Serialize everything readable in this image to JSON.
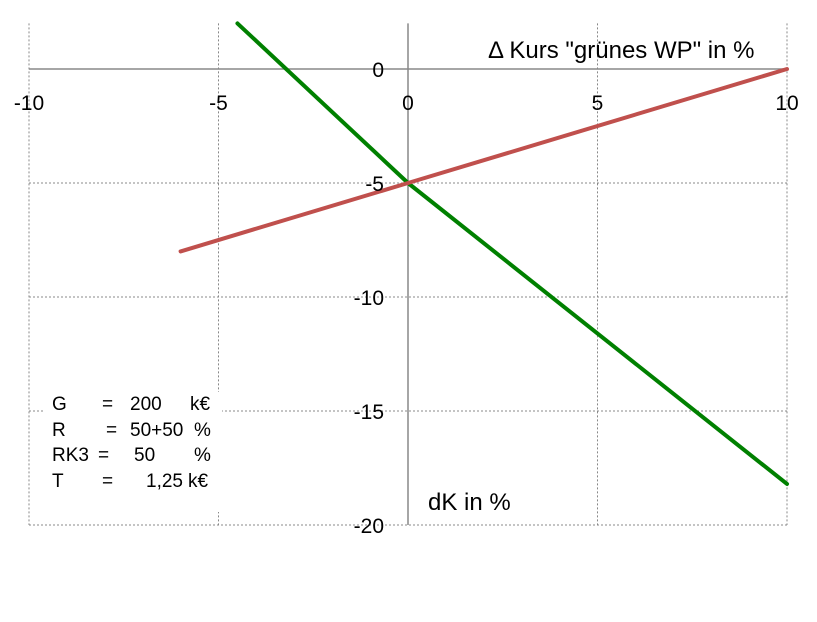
{
  "chart_data": {
    "type": "line",
    "xlabel": "dK  in %",
    "ylabel": "Δ Kurs \"grünes WP\"  in %",
    "xlim": [
      -10,
      10
    ],
    "ylim": [
      -20,
      2
    ],
    "x_ticks": [
      "-10",
      "-5",
      "0",
      "5",
      "10"
    ],
    "y_ticks": [
      "0",
      "-5",
      "-10",
      "-15",
      "-20"
    ],
    "grid": true,
    "series": [
      {
        "color": "#008000",
        "x": [
          -4.5,
          0,
          10
        ],
        "y": [
          2,
          -5,
          -18.2
        ]
      },
      {
        "color": "#c0504d",
        "x": [
          -6,
          0,
          10
        ],
        "y": [
          -8,
          -5,
          0
        ]
      }
    ]
  },
  "info_box": [
    {
      "symbol": "G",
      "eq": "=",
      "value": "200",
      "unit": "k€"
    },
    {
      "symbol": "R",
      "eq": "=",
      "value": "50+50",
      "unit": "%"
    },
    {
      "symbol": "RK3",
      "eq": "=",
      "value": "50",
      "unit": "%"
    },
    {
      "symbol": "T",
      "eq": "=",
      "value": "1,25",
      "unit": "k€"
    }
  ]
}
